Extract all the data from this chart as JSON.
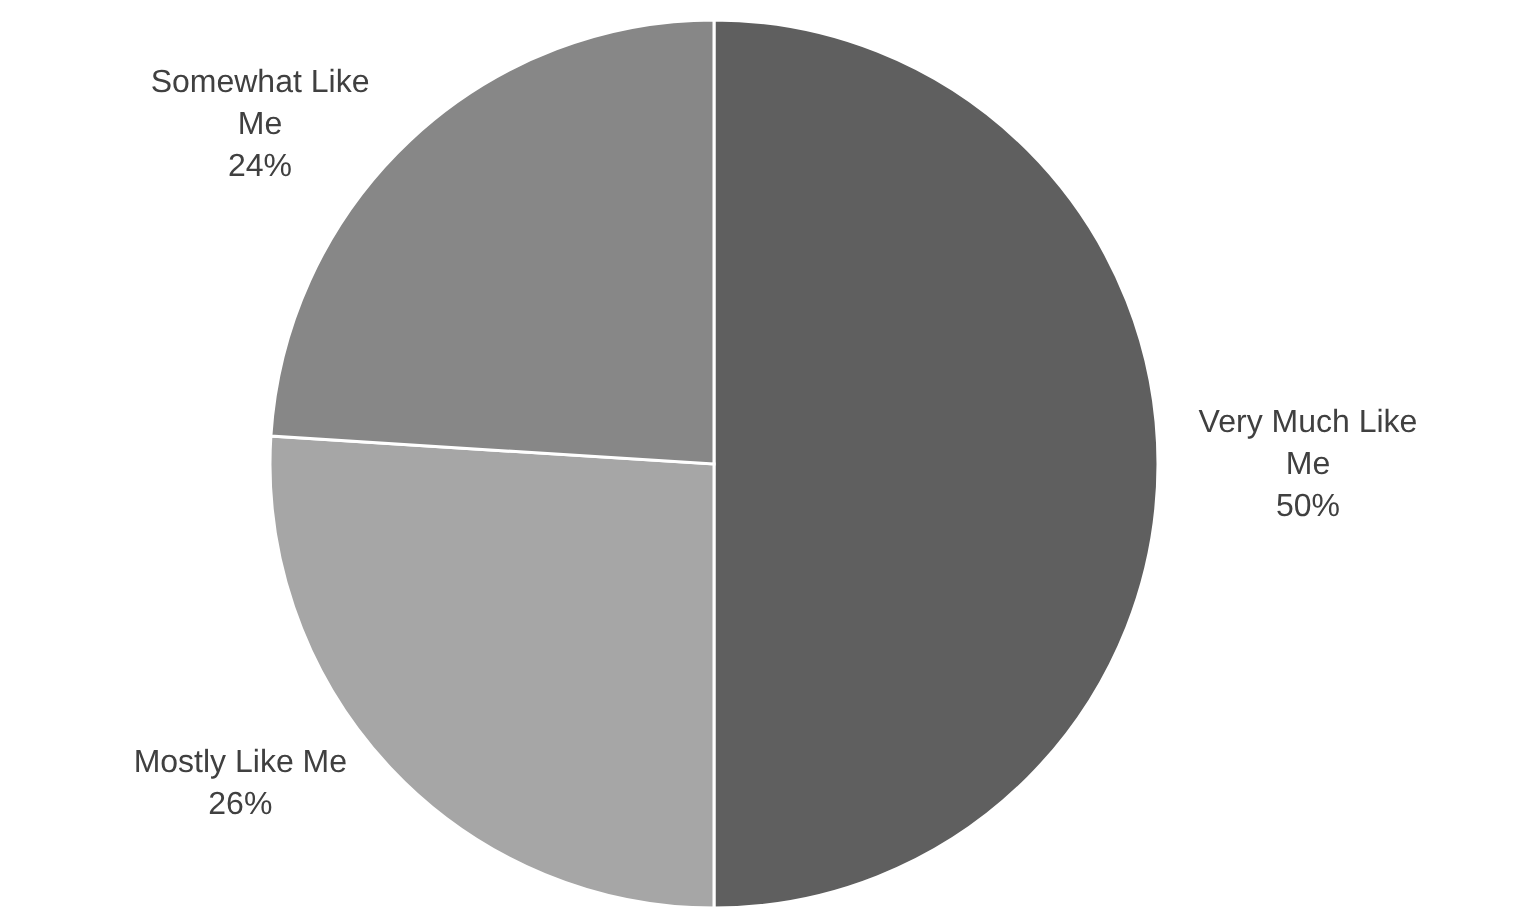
{
  "chart_data": {
    "type": "pie",
    "categories": [
      "Very Much Like Me",
      "Mostly Like Me",
      "Somewhat Like Me"
    ],
    "values": [
      50,
      26,
      24
    ],
    "colors": [
      "#5f5f5f",
      "#a6a6a6",
      "#878787"
    ],
    "value_labels": [
      "50%",
      "26%",
      "24%"
    ]
  }
}
